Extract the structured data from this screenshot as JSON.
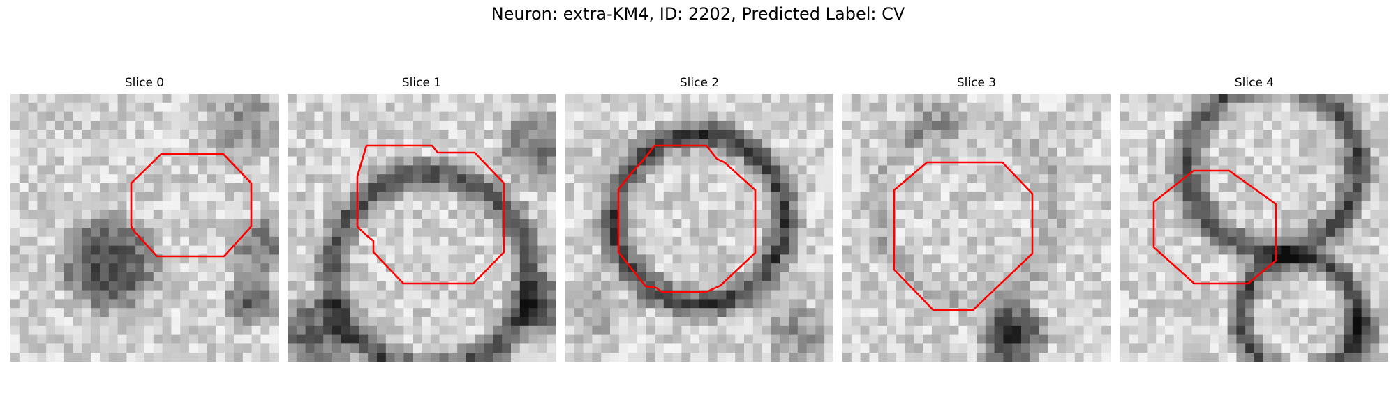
{
  "figure": {
    "title": "Neuron: extra-KM4, ID: 2202, Predicted Label: CV"
  },
  "panels": [
    {
      "title": "Slice 0",
      "image": "grayscale-em-patch",
      "contour_color": "#ff0000"
    },
    {
      "title": "Slice 1",
      "image": "grayscale-em-patch",
      "contour_color": "#ff0000"
    },
    {
      "title": "Slice 2",
      "image": "grayscale-em-patch",
      "contour_color": "#ff0000"
    },
    {
      "title": "Slice 3",
      "image": "grayscale-em-patch",
      "contour_color": "#ff0000"
    },
    {
      "title": "Slice 4",
      "image": "grayscale-em-patch",
      "contour_color": "#ff0000"
    }
  ]
}
